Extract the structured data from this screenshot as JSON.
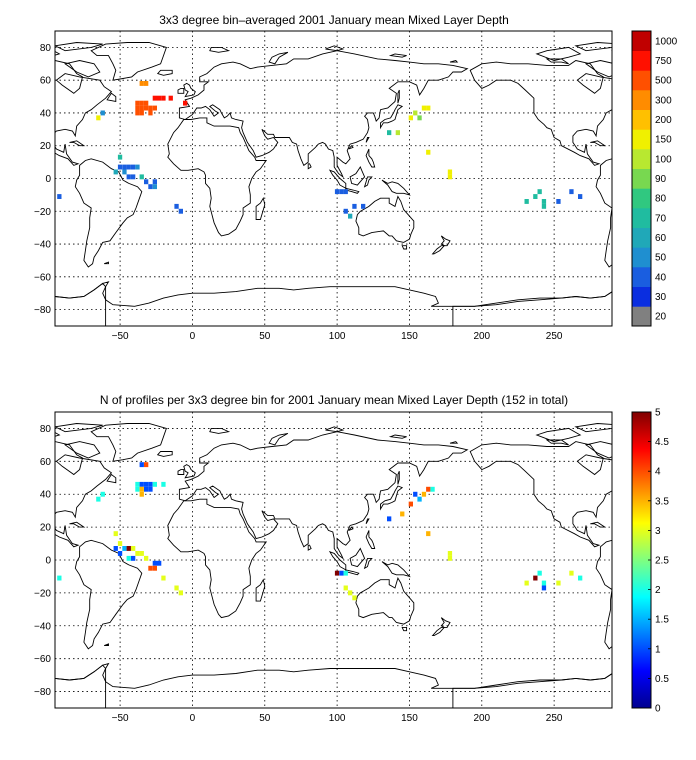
{
  "chart_data": [
    {
      "type": "heatmap",
      "title": "3x3 degree bin–averaged 2001 January mean Mixed Layer Depth",
      "x_ticks": [
        "−50",
        "0",
        "50",
        "100",
        "150",
        "200",
        "250"
      ],
      "y_ticks": [
        "80",
        "60",
        "40",
        "20",
        "0",
        "−20",
        "−40",
        "−60",
        "−80"
      ],
      "xlim": [
        -95,
        290
      ],
      "ylim": [
        -90,
        90
      ],
      "grid": true,
      "colorbar": {
        "labels": [
          "20",
          "30",
          "40",
          "50",
          "60",
          "70",
          "80",
          "90",
          "100",
          "150",
          "200",
          "300",
          "500",
          "750",
          "1000"
        ],
        "colors": [
          "#808080",
          "#0a2ee0",
          "#1a5ee0",
          "#1f8fd0",
          "#20a8b8",
          "#20bca0",
          "#30c880",
          "#78d850",
          "#b8e830",
          "#f0f000",
          "#ffc000",
          "#ff8c00",
          "#ff5000",
          "#ff1000",
          "#c00000"
        ]
      },
      "points": [
        {
          "lon": -35,
          "lat": 58,
          "cls": 11
        },
        {
          "lon": -32,
          "lat": 58,
          "cls": 11
        },
        {
          "lon": -38,
          "lat": 46,
          "cls": 12
        },
        {
          "lon": -35,
          "lat": 46,
          "cls": 12
        },
        {
          "lon": -32,
          "lat": 46,
          "cls": 12
        },
        {
          "lon": -26,
          "lat": 49,
          "cls": 13
        },
        {
          "lon": -23,
          "lat": 49,
          "cls": 13
        },
        {
          "lon": -20,
          "lat": 49,
          "cls": 13
        },
        {
          "lon": -15,
          "lat": 49,
          "cls": 13
        },
        {
          "lon": -5,
          "lat": 46,
          "cls": 13
        },
        {
          "lon": -38,
          "lat": 43,
          "cls": 12
        },
        {
          "lon": -35,
          "lat": 43,
          "cls": 12
        },
        {
          "lon": -32,
          "lat": 43,
          "cls": 12
        },
        {
          "lon": -29,
          "lat": 43,
          "cls": 12
        },
        {
          "lon": -26,
          "lat": 43,
          "cls": 12
        },
        {
          "lon": -38,
          "lat": 40,
          "cls": 12
        },
        {
          "lon": -35,
          "lat": 40,
          "cls": 12
        },
        {
          "lon": -29,
          "lat": 40,
          "cls": 12
        },
        {
          "lon": -65,
          "lat": 37,
          "cls": 9
        },
        {
          "lon": -62,
          "lat": 40,
          "cls": 3
        },
        {
          "lon": -50,
          "lat": 13,
          "cls": 5
        },
        {
          "lon": -50,
          "lat": 7,
          "cls": 2
        },
        {
          "lon": -47,
          "lat": 7,
          "cls": 2
        },
        {
          "lon": -44,
          "lat": 7,
          "cls": 2
        },
        {
          "lon": -41,
          "lat": 7,
          "cls": 2
        },
        {
          "lon": -38,
          "lat": 7,
          "cls": 3
        },
        {
          "lon": -53,
          "lat": 4,
          "cls": 4
        },
        {
          "lon": -47,
          "lat": 4,
          "cls": 3
        },
        {
          "lon": -44,
          "lat": 1,
          "cls": 2
        },
        {
          "lon": -41,
          "lat": 1,
          "cls": 2
        },
        {
          "lon": -35,
          "lat": 1,
          "cls": 5
        },
        {
          "lon": -32,
          "lat": -2,
          "cls": 2
        },
        {
          "lon": -26,
          "lat": -2,
          "cls": 2
        },
        {
          "lon": -29,
          "lat": -5,
          "cls": 2
        },
        {
          "lon": -26,
          "lat": -5,
          "cls": 3
        },
        {
          "lon": -11,
          "lat": -17,
          "cls": 2
        },
        {
          "lon": -8,
          "lat": -20,
          "cls": 2
        },
        {
          "lon": -92,
          "lat": -11,
          "cls": 2
        },
        {
          "lon": 160,
          "lat": 43,
          "cls": 9
        },
        {
          "lon": 163,
          "lat": 43,
          "cls": 9
        },
        {
          "lon": 154,
          "lat": 40,
          "cls": 8
        },
        {
          "lon": 157,
          "lat": 37,
          "cls": 7
        },
        {
          "lon": 151,
          "lat": 37,
          "cls": 9
        },
        {
          "lon": 142,
          "lat": 28,
          "cls": 8
        },
        {
          "lon": 136,
          "lat": 28,
          "cls": 5
        },
        {
          "lon": 163,
          "lat": 16,
          "cls": 9
        },
        {
          "lon": 178,
          "lat": 4,
          "cls": 9
        },
        {
          "lon": 178,
          "lat": 1,
          "cls": 9
        },
        {
          "lon": 100,
          "lat": -8,
          "cls": 2
        },
        {
          "lon": 103,
          "lat": -8,
          "cls": 2
        },
        {
          "lon": 106,
          "lat": -8,
          "cls": 2
        },
        {
          "lon": 106,
          "lat": -20,
          "cls": 2
        },
        {
          "lon": 109,
          "lat": -23,
          "cls": 4
        },
        {
          "lon": 112,
          "lat": -17,
          "cls": 2
        },
        {
          "lon": 118,
          "lat": -17,
          "cls": 2
        },
        {
          "lon": 240,
          "lat": -8,
          "cls": 5
        },
        {
          "lon": 237,
          "lat": -11,
          "cls": 5
        },
        {
          "lon": 231,
          "lat": -14,
          "cls": 5
        },
        {
          "lon": 243,
          "lat": -14,
          "cls": 5
        },
        {
          "lon": 243,
          "lat": -17,
          "cls": 5
        },
        {
          "lon": 253,
          "lat": -14,
          "cls": 2
        },
        {
          "lon": 262,
          "lat": -8,
          "cls": 2
        },
        {
          "lon": 268,
          "lat": -11,
          "cls": 2
        }
      ]
    },
    {
      "type": "heatmap",
      "title": "N of profiles per 3x3 degree bin for 2001 January mean Mixed Layer Depth  (152 in total)",
      "x_ticks": [
        "−50",
        "0",
        "50",
        "100",
        "150",
        "200",
        "250"
      ],
      "y_ticks": [
        "80",
        "60",
        "40",
        "20",
        "0",
        "−20",
        "−40",
        "−60",
        "−80"
      ],
      "xlim": [
        -95,
        290
      ],
      "ylim": [
        -90,
        90
      ],
      "grid": true,
      "colorbar": {
        "labels": [
          "0",
          "0.5",
          "1",
          "1.5",
          "2",
          "2.5",
          "3",
          "3.5",
          "4",
          "4.5",
          "5"
        ],
        "vmin": 0,
        "vmax": 5
      },
      "points": [
        {
          "lon": -35,
          "lat": 58,
          "v": 1
        },
        {
          "lon": -32,
          "lat": 58,
          "v": 4
        },
        {
          "lon": -38,
          "lat": 46,
          "v": 2
        },
        {
          "lon": -35,
          "lat": 46,
          "v": 1
        },
        {
          "lon": -32,
          "lat": 46,
          "v": 1
        },
        {
          "lon": -29,
          "lat": 46,
          "v": 1
        },
        {
          "lon": -26,
          "lat": 46,
          "v": 2
        },
        {
          "lon": -20,
          "lat": 46,
          "v": 2
        },
        {
          "lon": -38,
          "lat": 43,
          "v": 2
        },
        {
          "lon": -35,
          "lat": 43,
          "v": 3.5
        },
        {
          "lon": -32,
          "lat": 43,
          "v": 1
        },
        {
          "lon": -29,
          "lat": 43,
          "v": 1
        },
        {
          "lon": -35,
          "lat": 40,
          "v": 3.5
        },
        {
          "lon": -65,
          "lat": 37,
          "v": 2
        },
        {
          "lon": -62,
          "lat": 40,
          "v": 2
        },
        {
          "lon": -53,
          "lat": 16,
          "v": 3
        },
        {
          "lon": -50,
          "lat": 10,
          "v": 3
        },
        {
          "lon": -53,
          "lat": 7,
          "v": 1
        },
        {
          "lon": -50,
          "lat": 4,
          "v": 1
        },
        {
          "lon": -47,
          "lat": 7,
          "v": 1.5
        },
        {
          "lon": -44,
          "lat": 7,
          "v": 5
        },
        {
          "lon": -41,
          "lat": 7,
          "v": 3
        },
        {
          "lon": -38,
          "lat": 4,
          "v": 3
        },
        {
          "lon": -35,
          "lat": 4,
          "v": 3
        },
        {
          "lon": -44,
          "lat": 1,
          "v": 2
        },
        {
          "lon": -41,
          "lat": 1,
          "v": 1
        },
        {
          "lon": -32,
          "lat": 1,
          "v": 3
        },
        {
          "lon": -26,
          "lat": -2,
          "v": 1
        },
        {
          "lon": -23,
          "lat": -2,
          "v": 1
        },
        {
          "lon": -29,
          "lat": -5,
          "v": 4
        },
        {
          "lon": -26,
          "lat": -5,
          "v": 4
        },
        {
          "lon": -20,
          "lat": -11,
          "v": 3
        },
        {
          "lon": -11,
          "lat": -17,
          "v": 3
        },
        {
          "lon": -8,
          "lat": -20,
          "v": 3
        },
        {
          "lon": -92,
          "lat": -11,
          "v": 2
        },
        {
          "lon": 163,
          "lat": 43,
          "v": 4
        },
        {
          "lon": 160,
          "lat": 40,
          "v": 3.5
        },
        {
          "lon": 166,
          "lat": 43,
          "v": 2
        },
        {
          "lon": 157,
          "lat": 37,
          "v": 1.5
        },
        {
          "lon": 154,
          "lat": 40,
          "v": 1
        },
        {
          "lon": 151,
          "lat": 34,
          "v": 4
        },
        {
          "lon": 145,
          "lat": 28,
          "v": 3.5
        },
        {
          "lon": 136,
          "lat": 25,
          "v": 1
        },
        {
          "lon": 163,
          "lat": 16,
          "v": 3.5
        },
        {
          "lon": 178,
          "lat": 4,
          "v": 3
        },
        {
          "lon": 178,
          "lat": 1,
          "v": 3
        },
        {
          "lon": 100,
          "lat": -8,
          "v": 5
        },
        {
          "lon": 103,
          "lat": -8,
          "v": 1
        },
        {
          "lon": 106,
          "lat": -8,
          "v": 2
        },
        {
          "lon": 106,
          "lat": -17,
          "v": 3
        },
        {
          "lon": 109,
          "lat": -20,
          "v": 3
        },
        {
          "lon": 112,
          "lat": -23,
          "v": 3
        },
        {
          "lon": 231,
          "lat": -14,
          "v": 3
        },
        {
          "lon": 237,
          "lat": -11,
          "v": 5
        },
        {
          "lon": 240,
          "lat": -8,
          "v": 2
        },
        {
          "lon": 243,
          "lat": -14,
          "v": 2
        },
        {
          "lon": 243,
          "lat": -17,
          "v": 1
        },
        {
          "lon": 253,
          "lat": -14,
          "v": 3
        },
        {
          "lon": 262,
          "lat": -8,
          "v": 3
        },
        {
          "lon": 268,
          "lat": -11,
          "v": 2
        }
      ]
    }
  ]
}
